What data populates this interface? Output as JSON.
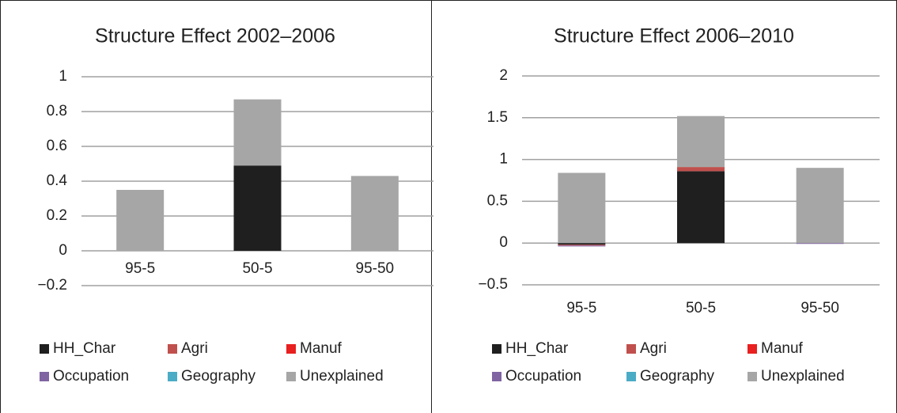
{
  "chart_data": [
    {
      "type": "bar",
      "stacked": true,
      "title": "Structure Effect 2002–2006",
      "categories": [
        "95-5",
        "50-5",
        "95-50"
      ],
      "series": [
        {
          "name": "HH_Char",
          "color": "#1f1f1f",
          "values": [
            0,
            0.49,
            0
          ]
        },
        {
          "name": "Agri",
          "color": "#c0504d",
          "values": [
            0,
            0,
            0
          ]
        },
        {
          "name": "Manuf",
          "color": "#e8201f",
          "values": [
            0,
            0,
            0
          ]
        },
        {
          "name": "Occupation",
          "color": "#8064a2",
          "values": [
            0,
            0,
            0
          ]
        },
        {
          "name": "Geography",
          "color": "#4bacc6",
          "values": [
            0,
            0,
            0
          ]
        },
        {
          "name": "Unexplained",
          "color": "#a6a6a6",
          "values": [
            0.35,
            0.38,
            0.43
          ]
        }
      ],
      "ylim": [
        -0.2,
        1
      ],
      "yticks": [
        {
          "value": -0.2,
          "label": "−0.2"
        },
        0,
        0.2,
        0.4,
        0.6,
        0.8,
        1
      ],
      "grid": true
    },
    {
      "type": "bar",
      "stacked": true,
      "title": "Structure Effect 2006–2010",
      "categories": [
        "95-5",
        "50-5",
        "95-50"
      ],
      "series": [
        {
          "name": "HH_Char",
          "color": "#1f1f1f",
          "values": [
            -0.02,
            0.86,
            0
          ]
        },
        {
          "name": "Agri",
          "color": "#c0504d",
          "values": [
            -0.01,
            0.05,
            0
          ]
        },
        {
          "name": "Manuf",
          "color": "#e8201f",
          "values": [
            0,
            0,
            0
          ]
        },
        {
          "name": "Occupation",
          "color": "#8064a2",
          "values": [
            -0.01,
            0,
            -0.01
          ]
        },
        {
          "name": "Geography",
          "color": "#4bacc6",
          "values": [
            0,
            0,
            0
          ]
        },
        {
          "name": "Unexplained",
          "color": "#a6a6a6",
          "values": [
            0.84,
            0.61,
            0.9
          ]
        }
      ],
      "ylim": [
        -0.5,
        2
      ],
      "yticks": [
        {
          "value": -0.5,
          "label": "−0.5"
        },
        0,
        0.5,
        1,
        1.5,
        2
      ],
      "grid": true
    }
  ]
}
